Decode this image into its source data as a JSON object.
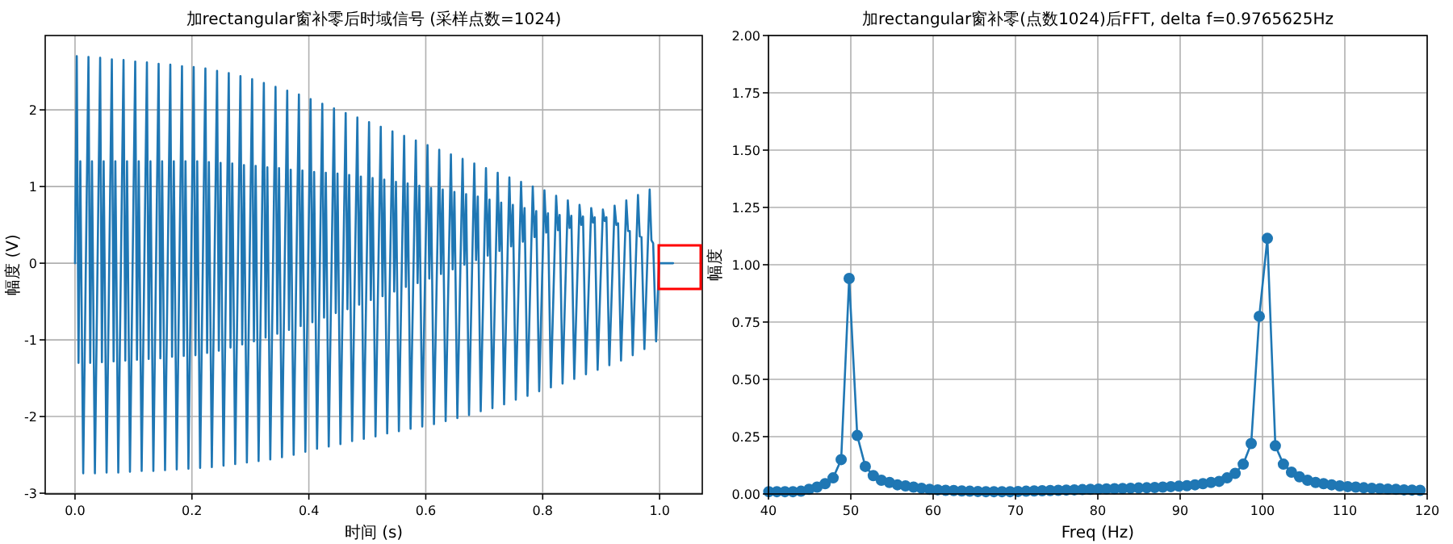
{
  "chart_data": [
    {
      "type": "line",
      "title": "加rectangular窗补零后时域信号 (采样点数=1024)",
      "xlabel": "时间 (s)",
      "ylabel": "幅度 (V)",
      "grid": true,
      "xlim": [
        -0.051,
        1.073
      ],
      "ylim": [
        -3.01,
        2.97
      ],
      "xticks": [
        {
          "value": 0,
          "label": "0.0"
        },
        {
          "value": 0.2,
          "label": "0.2"
        },
        {
          "value": 0.4,
          "label": "0.4"
        },
        {
          "value": 0.6,
          "label": "0.6"
        },
        {
          "value": 0.8,
          "label": "0.8"
        },
        {
          "value": 1,
          "label": "1.0"
        }
      ],
      "yticks": [
        -3,
        -2,
        -1,
        0,
        1,
        2
      ],
      "series": [
        {
          "color": "#1f77b4",
          "x": [
            0,
            0.003,
            0.006,
            0.009,
            0.014,
            0.023,
            0.026,
            0.029,
            0.034,
            0.043,
            0.046,
            0.049,
            0.054,
            0.063,
            0.066,
            0.069,
            0.074,
            0.083,
            0.086,
            0.089,
            0.094,
            0.103,
            0.106,
            0.109,
            0.114,
            0.123,
            0.126,
            0.129,
            0.134,
            0.143,
            0.146,
            0.149,
            0.154,
            0.163,
            0.166,
            0.169,
            0.174,
            0.183,
            0.186,
            0.189,
            0.194,
            0.203,
            0.206,
            0.209,
            0.214,
            0.223,
            0.226,
            0.229,
            0.234,
            0.243,
            0.246,
            0.249,
            0.254,
            0.263,
            0.266,
            0.269,
            0.274,
            0.283,
            0.286,
            0.289,
            0.294,
            0.303,
            0.306,
            0.309,
            0.314,
            0.323,
            0.326,
            0.329,
            0.334,
            0.343,
            0.346,
            0.349,
            0.354,
            0.363,
            0.366,
            0.369,
            0.374,
            0.383,
            0.386,
            0.389,
            0.394,
            0.403,
            0.406,
            0.409,
            0.414,
            0.423,
            0.426,
            0.429,
            0.434,
            0.443,
            0.446,
            0.449,
            0.454,
            0.463,
            0.466,
            0.469,
            0.474,
            0.483,
            0.486,
            0.489,
            0.494,
            0.503,
            0.506,
            0.509,
            0.514,
            0.523,
            0.526,
            0.529,
            0.534,
            0.543,
            0.546,
            0.549,
            0.554,
            0.563,
            0.566,
            0.569,
            0.574,
            0.583,
            0.586,
            0.589,
            0.594,
            0.603,
            0.606,
            0.609,
            0.614,
            0.623,
            0.626,
            0.629,
            0.634,
            0.643,
            0.646,
            0.649,
            0.654,
            0.663,
            0.666,
            0.669,
            0.674,
            0.683,
            0.686,
            0.689,
            0.694,
            0.703,
            0.706,
            0.709,
            0.714,
            0.723,
            0.726,
            0.729,
            0.734,
            0.743,
            0.746,
            0.749,
            0.754,
            0.763,
            0.766,
            0.769,
            0.774,
            0.783,
            0.786,
            0.789,
            0.794,
            0.803,
            0.806,
            0.809,
            0.814,
            0.823,
            0.826,
            0.829,
            0.834,
            0.843,
            0.846,
            0.849,
            0.854,
            0.863,
            0.866,
            0.869,
            0.874,
            0.883,
            0.886,
            0.889,
            0.894,
            0.903,
            0.906,
            0.909,
            0.914,
            0.923,
            0.926,
            0.929,
            0.934,
            0.943,
            0.946,
            0.949,
            0.954,
            0.963,
            0.966,
            0.969,
            0.974,
            0.983,
            0.986,
            0.989,
            0.994,
            0.999,
            1.023
          ],
          "values": [
            0,
            2.7,
            -1.3,
            1.33,
            -2.74,
            2.69,
            -1.3,
            1.33,
            -2.74,
            2.68,
            -1.29,
            1.33,
            -2.73,
            2.66,
            -1.28,
            1.33,
            -2.73,
            2.65,
            -1.27,
            1.33,
            -2.72,
            2.63,
            -1.26,
            1.33,
            -2.71,
            2.62,
            -1.25,
            1.33,
            -2.71,
            2.6,
            -1.24,
            1.33,
            -2.7,
            2.59,
            -1.22,
            1.33,
            -2.69,
            2.57,
            -1.21,
            1.33,
            -2.68,
            2.56,
            -1.2,
            1.33,
            -2.67,
            2.54,
            -1.17,
            1.32,
            -2.66,
            2.51,
            -1.14,
            1.31,
            -2.64,
            2.48,
            -1.1,
            1.3,
            -2.62,
            2.44,
            -1.06,
            1.28,
            -2.6,
            2.4,
            -1.02,
            1.27,
            -2.58,
            2.35,
            -0.97,
            1.25,
            -2.56,
            2.3,
            -0.92,
            1.24,
            -2.53,
            2.25,
            -0.87,
            1.22,
            -2.5,
            2.2,
            -0.82,
            1.21,
            -2.46,
            2.14,
            -0.77,
            1.19,
            -2.42,
            2.08,
            -0.71,
            1.18,
            -2.39,
            2.02,
            -0.65,
            1.17,
            -2.36,
            1.96,
            -0.6,
            1.15,
            -2.32,
            1.9,
            -0.54,
            1.13,
            -2.29,
            1.84,
            -0.48,
            1.11,
            -2.26,
            1.78,
            -0.43,
            1.09,
            -2.22,
            1.72,
            -0.37,
            1.06,
            -2.19,
            1.66,
            -0.31,
            1.04,
            -2.16,
            1.6,
            -0.26,
            1.01,
            -2.13,
            1.54,
            -0.2,
            0.98,
            -2.1,
            1.48,
            -0.14,
            0.96,
            -2.06,
            1.42,
            -0.08,
            0.93,
            -2.02,
            1.36,
            -0.02,
            0.9,
            -1.98,
            1.3,
            0.04,
            0.87,
            -1.93,
            1.24,
            0.1,
            0.83,
            -1.89,
            1.18,
            0.16,
            0.79,
            -1.84,
            1.12,
            0.22,
            0.76,
            -1.78,
            1.06,
            0.28,
            0.72,
            -1.73,
            1.0,
            0.34,
            0.68,
            -1.67,
            0.95,
            0.4,
            0.65,
            -1.62,
            0.88,
            0.43,
            0.63,
            -1.57,
            0.82,
            0.46,
            0.62,
            -1.51,
            0.76,
            0.5,
            0.61,
            -1.45,
            0.72,
            0.53,
            0.6,
            -1.39,
            0.7,
            0.55,
            0.6,
            -1.33,
            0.75,
            0.5,
            0.52,
            -1.27,
            0.82,
            0.42,
            0.42,
            -1.2,
            0.89,
            0.35,
            0.34,
            -1.12,
            0.96,
            0.3,
            0.26,
            -1.02,
            0,
            0
          ]
        }
      ]
    },
    {
      "type": "line",
      "title": "加rectangular窗补零(点数1024)后FFT, delta f=0.9765625Hz",
      "xlabel": "Freq (Hz)",
      "ylabel": "幅度",
      "grid": true,
      "marker": "circle",
      "xlim": [
        40,
        120
      ],
      "ylim": [
        0,
        2
      ],
      "xticks": [
        40,
        50,
        60,
        70,
        80,
        90,
        100,
        110,
        120
      ],
      "yticks": [
        {
          "value": 0,
          "label": "0.00"
        },
        {
          "value": 0.25,
          "label": "0.25"
        },
        {
          "value": 0.5,
          "label": "0.50"
        },
        {
          "value": 0.75,
          "label": "0.75"
        },
        {
          "value": 1,
          "label": "1.00"
        },
        {
          "value": 1.25,
          "label": "1.25"
        },
        {
          "value": 1.5,
          "label": "1.50"
        },
        {
          "value": 1.75,
          "label": "1.75"
        },
        {
          "value": 2,
          "label": "2.00"
        }
      ],
      "series": [
        {
          "color": "#1f77b4",
          "x": [
            40.04,
            41.02,
            42.0,
            42.97,
            43.95,
            44.92,
            45.9,
            46.88,
            47.85,
            48.83,
            49.8,
            50.78,
            51.76,
            52.73,
            53.71,
            54.69,
            55.66,
            56.64,
            57.62,
            58.59,
            59.57,
            60.55,
            61.52,
            62.5,
            63.48,
            64.45,
            65.43,
            66.41,
            67.38,
            68.36,
            69.34,
            70.31,
            71.29,
            72.27,
            73.24,
            74.22,
            75.2,
            76.17,
            77.15,
            78.13,
            79.1,
            80.08,
            81.05,
            82.03,
            83.01,
            83.98,
            84.96,
            85.94,
            86.91,
            87.89,
            88.87,
            89.84,
            90.82,
            91.8,
            92.77,
            93.75,
            94.73,
            95.7,
            96.68,
            97.66,
            98.63,
            99.61,
            100.59,
            101.56,
            102.54,
            103.52,
            104.49,
            105.47,
            106.45,
            107.42,
            108.4,
            109.38,
            110.35,
            111.33,
            112.3,
            113.28,
            114.26,
            115.23,
            116.21,
            117.19,
            118.16,
            119.14
          ],
          "values": [
            0.01,
            0.01,
            0.01,
            0.01,
            0.012,
            0.02,
            0.03,
            0.045,
            0.07,
            0.15,
            0.94,
            0.255,
            0.12,
            0.08,
            0.06,
            0.05,
            0.04,
            0.035,
            0.03,
            0.025,
            0.02,
            0.018,
            0.016,
            0.015,
            0.013,
            0.012,
            0.011,
            0.01,
            0.01,
            0.01,
            0.01,
            0.011,
            0.012,
            0.013,
            0.014,
            0.015,
            0.016,
            0.017,
            0.018,
            0.019,
            0.02,
            0.021,
            0.022,
            0.023,
            0.024,
            0.025,
            0.026,
            0.027,
            0.028,
            0.03,
            0.032,
            0.034,
            0.036,
            0.04,
            0.045,
            0.05,
            0.055,
            0.07,
            0.09,
            0.13,
            0.22,
            0.775,
            1.115,
            0.21,
            0.13,
            0.095,
            0.075,
            0.06,
            0.05,
            0.045,
            0.04,
            0.035,
            0.032,
            0.03,
            0.027,
            0.025,
            0.023,
            0.021,
            0.02,
            0.018,
            0.017,
            0.016
          ]
        }
      ]
    }
  ]
}
